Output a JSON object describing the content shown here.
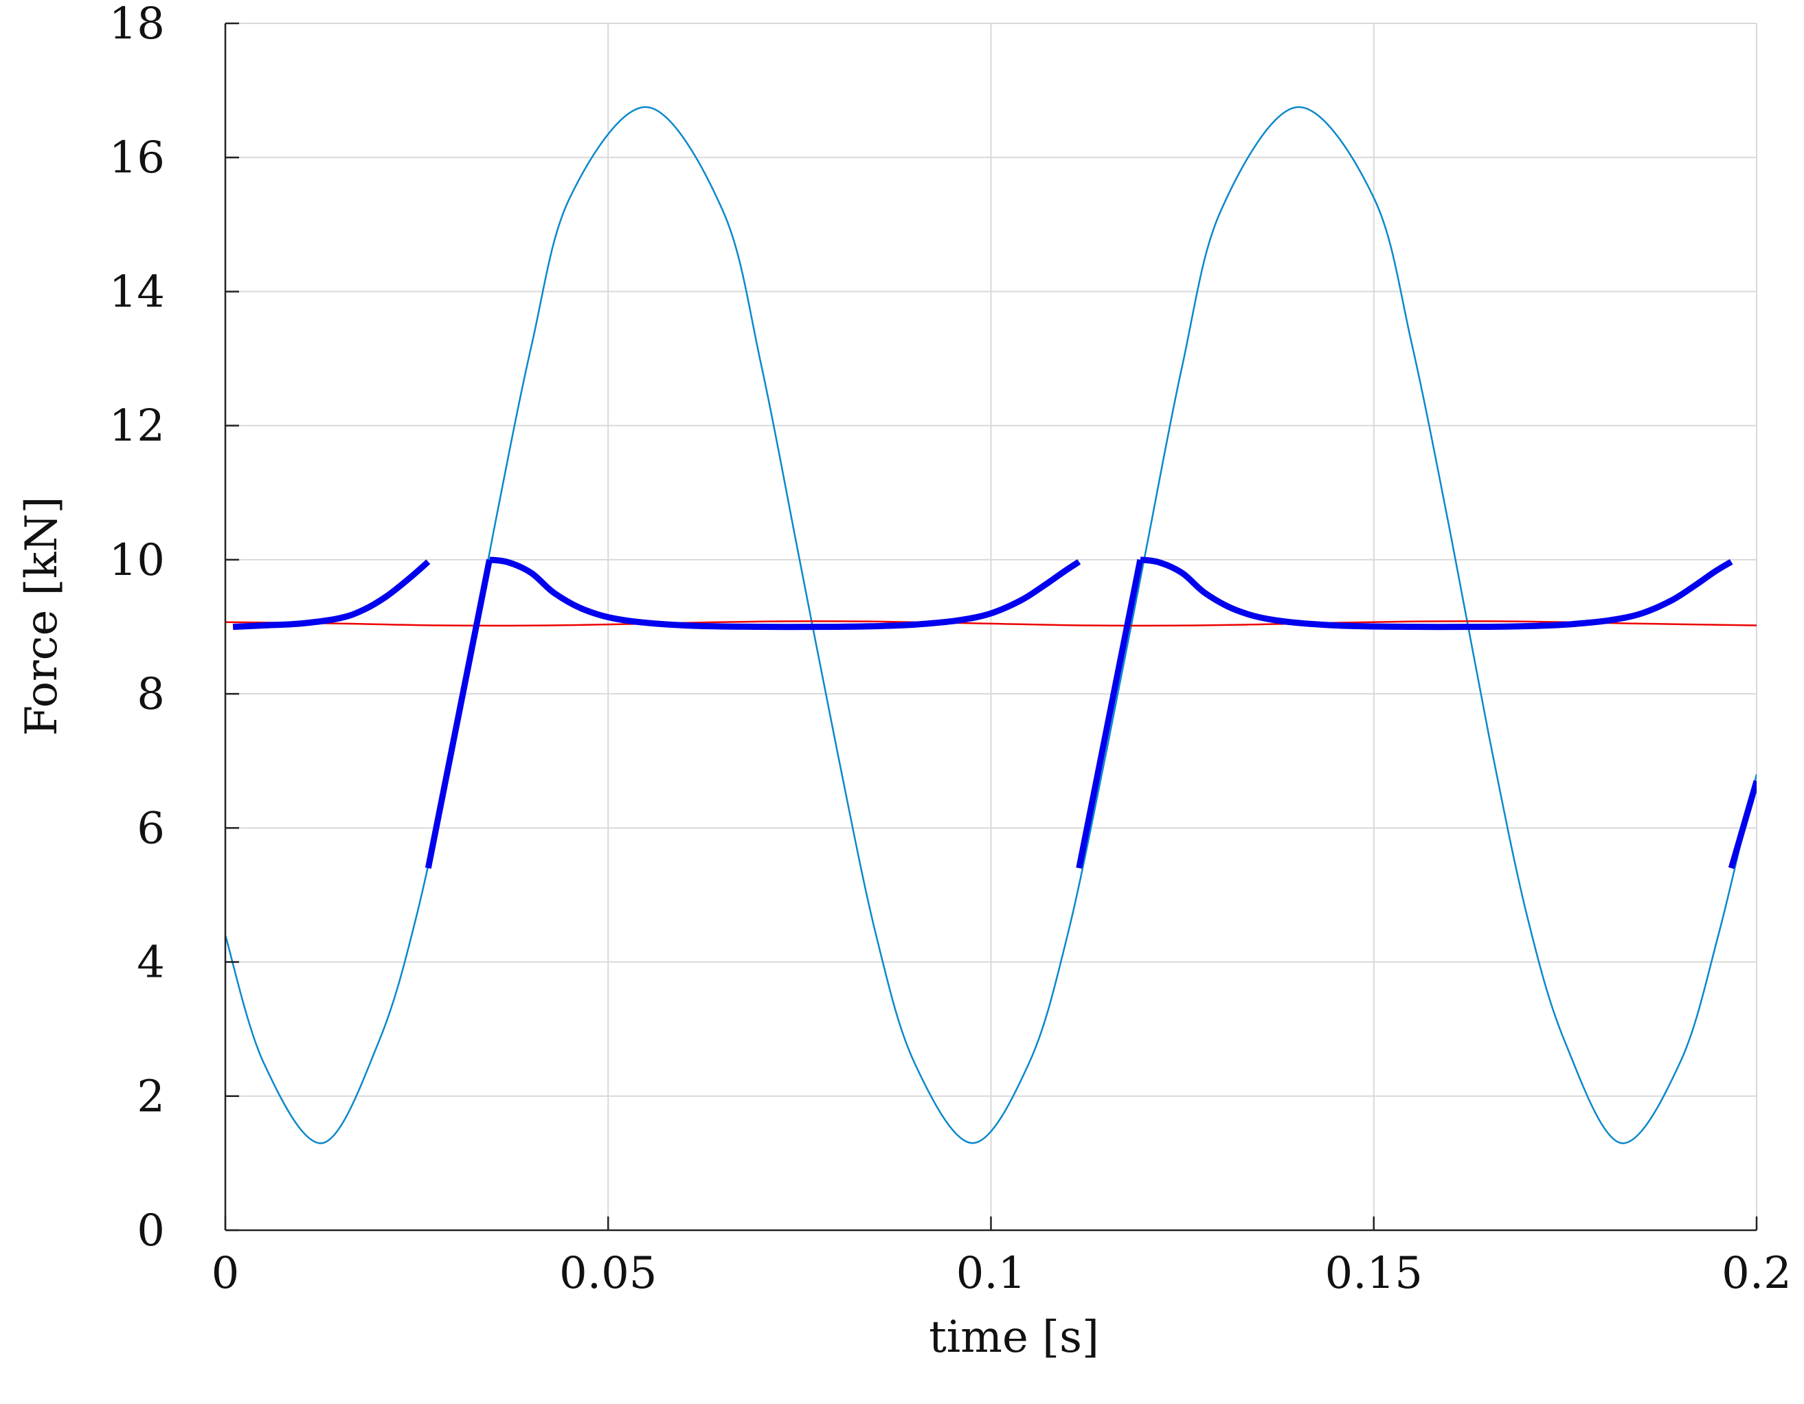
{
  "chart_data": {
    "type": "line",
    "title": "",
    "xlabel": "time [s]",
    "ylabel": "Force [kN]",
    "xlim": [
      0,
      0.2
    ],
    "ylim": [
      0,
      18
    ],
    "x_ticks": [
      0,
      0.05,
      0.1,
      0.15,
      0.2
    ],
    "x_tick_labels": [
      "0",
      "0.05",
      "0.1",
      "0.15",
      "0.2"
    ],
    "y_ticks": [
      0,
      2,
      4,
      6,
      8,
      10,
      12,
      14,
      16,
      18
    ],
    "y_tick_labels": [
      "0",
      "2",
      "4",
      "6",
      "8",
      "10",
      "12",
      "14",
      "16",
      "18"
    ],
    "grid": true,
    "legend": "none",
    "series": [
      {
        "color": "#0a88cc",
        "line_width": "thin",
        "segments": [
          {
            "x": [
              0,
              0.005,
              0.0127,
              0.02,
              0.025,
              0.03,
              0.035,
              0.04,
              0.045,
              0.0551,
              0.065,
              0.07,
              0.075,
              0.08,
              0.085,
              0.09,
              0.0976,
              0.105,
              0.11,
              0.115,
              0.12,
              0.125,
              0.13,
              0.14,
              0.15,
              0.155,
              0.16,
              0.165,
              0.17,
              0.175,
              0.1823,
              0.19,
              0.195,
              0.2
            ],
            "y": [
              4.4,
              2.5,
              1.3,
              2.8,
              4.7,
              7.4,
              10.4,
              13.2,
              15.4,
              16.75,
              15.2,
              12.9,
              10.0,
              7.1,
              4.4,
              2.5,
              1.3,
              2.5,
              4.4,
              7.1,
              10.0,
              12.9,
              15.2,
              16.75,
              15.4,
              13.2,
              10.4,
              7.4,
              4.7,
              2.8,
              1.3,
              2.5,
              4.4,
              6.8
            ]
          }
        ]
      },
      {
        "color": "#ee0000",
        "line_width": "thin",
        "segments": [
          {
            "x": [
              0,
              0.0141,
              0.0282,
              0.0423,
              0.0564,
              0.0705,
              0.0846,
              0.0987,
              0.1128,
              0.1269,
              0.141,
              0.1551,
              0.1692,
              0.1833,
              0.2
            ],
            "y": [
              9.07,
              9.05,
              9.02,
              9.02,
              9.05,
              9.08,
              9.08,
              9.05,
              9.02,
              9.02,
              9.05,
              9.08,
              9.08,
              9.05,
              9.02
            ]
          }
        ]
      },
      {
        "color": "#0000ee",
        "line_width": "thick",
        "segments": [
          {
            "x": [
              0.001,
              0.005,
              0.01,
              0.015,
              0.018,
              0.021,
              0.024,
              0.0265
            ],
            "y": [
              9.0,
              9.02,
              9.05,
              9.13,
              9.25,
              9.45,
              9.72,
              9.97
            ]
          },
          {
            "x": [
              0.0265,
              0.0345
            ],
            "y": [
              5.4,
              10.0
            ]
          },
          {
            "x": [
              0.0345,
              0.037,
              0.04,
              0.043,
              0.047,
              0.052,
              0.06,
              0.07,
              0.08,
              0.088,
              0.092,
              0.096,
              0.1,
              0.104,
              0.107,
              0.1095,
              0.1115
            ],
            "y": [
              10.0,
              9.96,
              9.8,
              9.5,
              9.25,
              9.1,
              9.02,
              9.0,
              9.0,
              9.02,
              9.05,
              9.1,
              9.2,
              9.4,
              9.62,
              9.82,
              9.97
            ]
          },
          {
            "x": [
              0.1115,
              0.1195
            ],
            "y": [
              5.4,
              10.0
            ]
          },
          {
            "x": [
              0.1195,
              0.122,
              0.125,
              0.128,
              0.132,
              0.137,
              0.145,
              0.155,
              0.165,
              0.173,
              0.177,
              0.181,
              0.185,
              0.189,
              0.192,
              0.1945,
              0.1967
            ],
            "y": [
              10.0,
              9.96,
              9.8,
              9.5,
              9.25,
              9.1,
              9.02,
              9.0,
              9.0,
              9.02,
              9.05,
              9.1,
              9.2,
              9.4,
              9.62,
              9.82,
              9.97
            ]
          },
          {
            "x": [
              0.1967,
              0.2
            ],
            "y": [
              5.4,
              6.7
            ]
          }
        ]
      }
    ]
  }
}
